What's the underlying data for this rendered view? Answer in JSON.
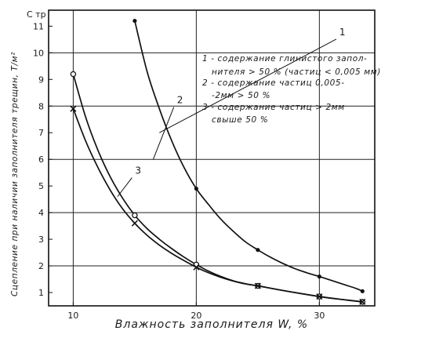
{
  "chart_data": {
    "type": "line",
    "title": "",
    "xlabel": "Влажность заполнителя W, %",
    "ylabel": "Сцепление при наличии заполнителя трещин, Т/м²",
    "ylabel_symbol": "С тр",
    "xlim": [
      8,
      34.5
    ],
    "ylim": [
      0.5,
      11.6
    ],
    "x_ticks": [
      "10",
      "20",
      "30"
    ],
    "x_tick_values": [
      10,
      20,
      30
    ],
    "y_ticks": [
      "1",
      "2",
      "3",
      "4",
      "5",
      "6",
      "7",
      "8",
      "9",
      "10",
      "11"
    ],
    "y_tick_values": [
      1,
      2,
      3,
      4,
      5,
      6,
      7,
      8,
      9,
      10,
      11
    ],
    "grid": true,
    "series": [
      {
        "name": "1",
        "marker": "dot",
        "points": [
          [
            15,
            11.2
          ],
          [
            20,
            4.9
          ],
          [
            25,
            2.6
          ],
          [
            30,
            1.6
          ],
          [
            33.5,
            1.05
          ]
        ],
        "curve": [
          [
            15,
            11.2
          ],
          [
            16,
            9.3
          ],
          [
            17,
            7.9
          ],
          [
            18,
            6.7
          ],
          [
            19,
            5.7
          ],
          [
            20,
            4.9
          ],
          [
            21,
            4.3
          ],
          [
            22,
            3.75
          ],
          [
            23,
            3.3
          ],
          [
            24,
            2.9
          ],
          [
            25,
            2.6
          ],
          [
            26,
            2.33
          ],
          [
            27,
            2.1
          ],
          [
            28,
            1.9
          ],
          [
            29,
            1.74
          ],
          [
            30,
            1.6
          ],
          [
            31,
            1.45
          ],
          [
            32,
            1.3
          ],
          [
            33,
            1.15
          ],
          [
            33.5,
            1.05
          ]
        ]
      },
      {
        "name": "2",
        "marker": "circle",
        "points": [
          [
            10,
            9.2
          ],
          [
            15,
            3.9
          ],
          [
            20,
            2.05
          ],
          [
            25,
            1.25
          ],
          [
            30,
            0.85
          ],
          [
            33.5,
            0.65
          ]
        ],
        "curve": [
          [
            10,
            9.2
          ],
          [
            11,
            7.6
          ],
          [
            12,
            6.35
          ],
          [
            13,
            5.35
          ],
          [
            14,
            4.55
          ],
          [
            15,
            3.9
          ],
          [
            16,
            3.4
          ],
          [
            17,
            3.0
          ],
          [
            18,
            2.65
          ],
          [
            19,
            2.33
          ],
          [
            20,
            2.05
          ],
          [
            21,
            1.8
          ],
          [
            22,
            1.6
          ],
          [
            23,
            1.44
          ],
          [
            24,
            1.33
          ],
          [
            25,
            1.25
          ],
          [
            27,
            1.08
          ],
          [
            30,
            0.85
          ],
          [
            32,
            0.73
          ],
          [
            33.5,
            0.65
          ]
        ]
      },
      {
        "name": "3",
        "marker": "cross",
        "points": [
          [
            10,
            7.9
          ],
          [
            15,
            3.6
          ],
          [
            20,
            1.95
          ],
          [
            25,
            1.25
          ],
          [
            30,
            0.85
          ],
          [
            33.5,
            0.65
          ]
        ],
        "curve": [
          [
            10,
            7.9
          ],
          [
            11,
            6.7
          ],
          [
            12,
            5.7
          ],
          [
            13,
            4.85
          ],
          [
            14,
            4.15
          ],
          [
            15,
            3.6
          ],
          [
            16,
            3.15
          ],
          [
            17,
            2.78
          ],
          [
            18,
            2.47
          ],
          [
            19,
            2.2
          ],
          [
            20,
            1.95
          ],
          [
            21,
            1.74
          ],
          [
            22,
            1.57
          ],
          [
            23,
            1.43
          ],
          [
            24,
            1.32
          ],
          [
            25,
            1.25
          ],
          [
            27,
            1.08
          ],
          [
            30,
            0.85
          ],
          [
            32,
            0.73
          ],
          [
            33.5,
            0.65
          ]
        ]
      }
    ],
    "curve_labels": [
      {
        "text": "1",
        "x": 31.5,
        "y": 10.6,
        "for": 0
      },
      {
        "text": "2",
        "x": 18.3,
        "y": 8.05,
        "for": 1
      },
      {
        "text": "3",
        "x": 14.9,
        "y": 5.4,
        "for": 2
      }
    ],
    "legend": {
      "placement": "top-right",
      "lines": [
        "1 - содержание глинистого запол-",
        "нителя > 50 % (частиц < 0,005 мм)",
        "2 - содержание частиц 0,005-",
        "-2мм > 50 %",
        "3 - содержание частиц > 2мм",
        "свыше 50 %"
      ]
    }
  }
}
